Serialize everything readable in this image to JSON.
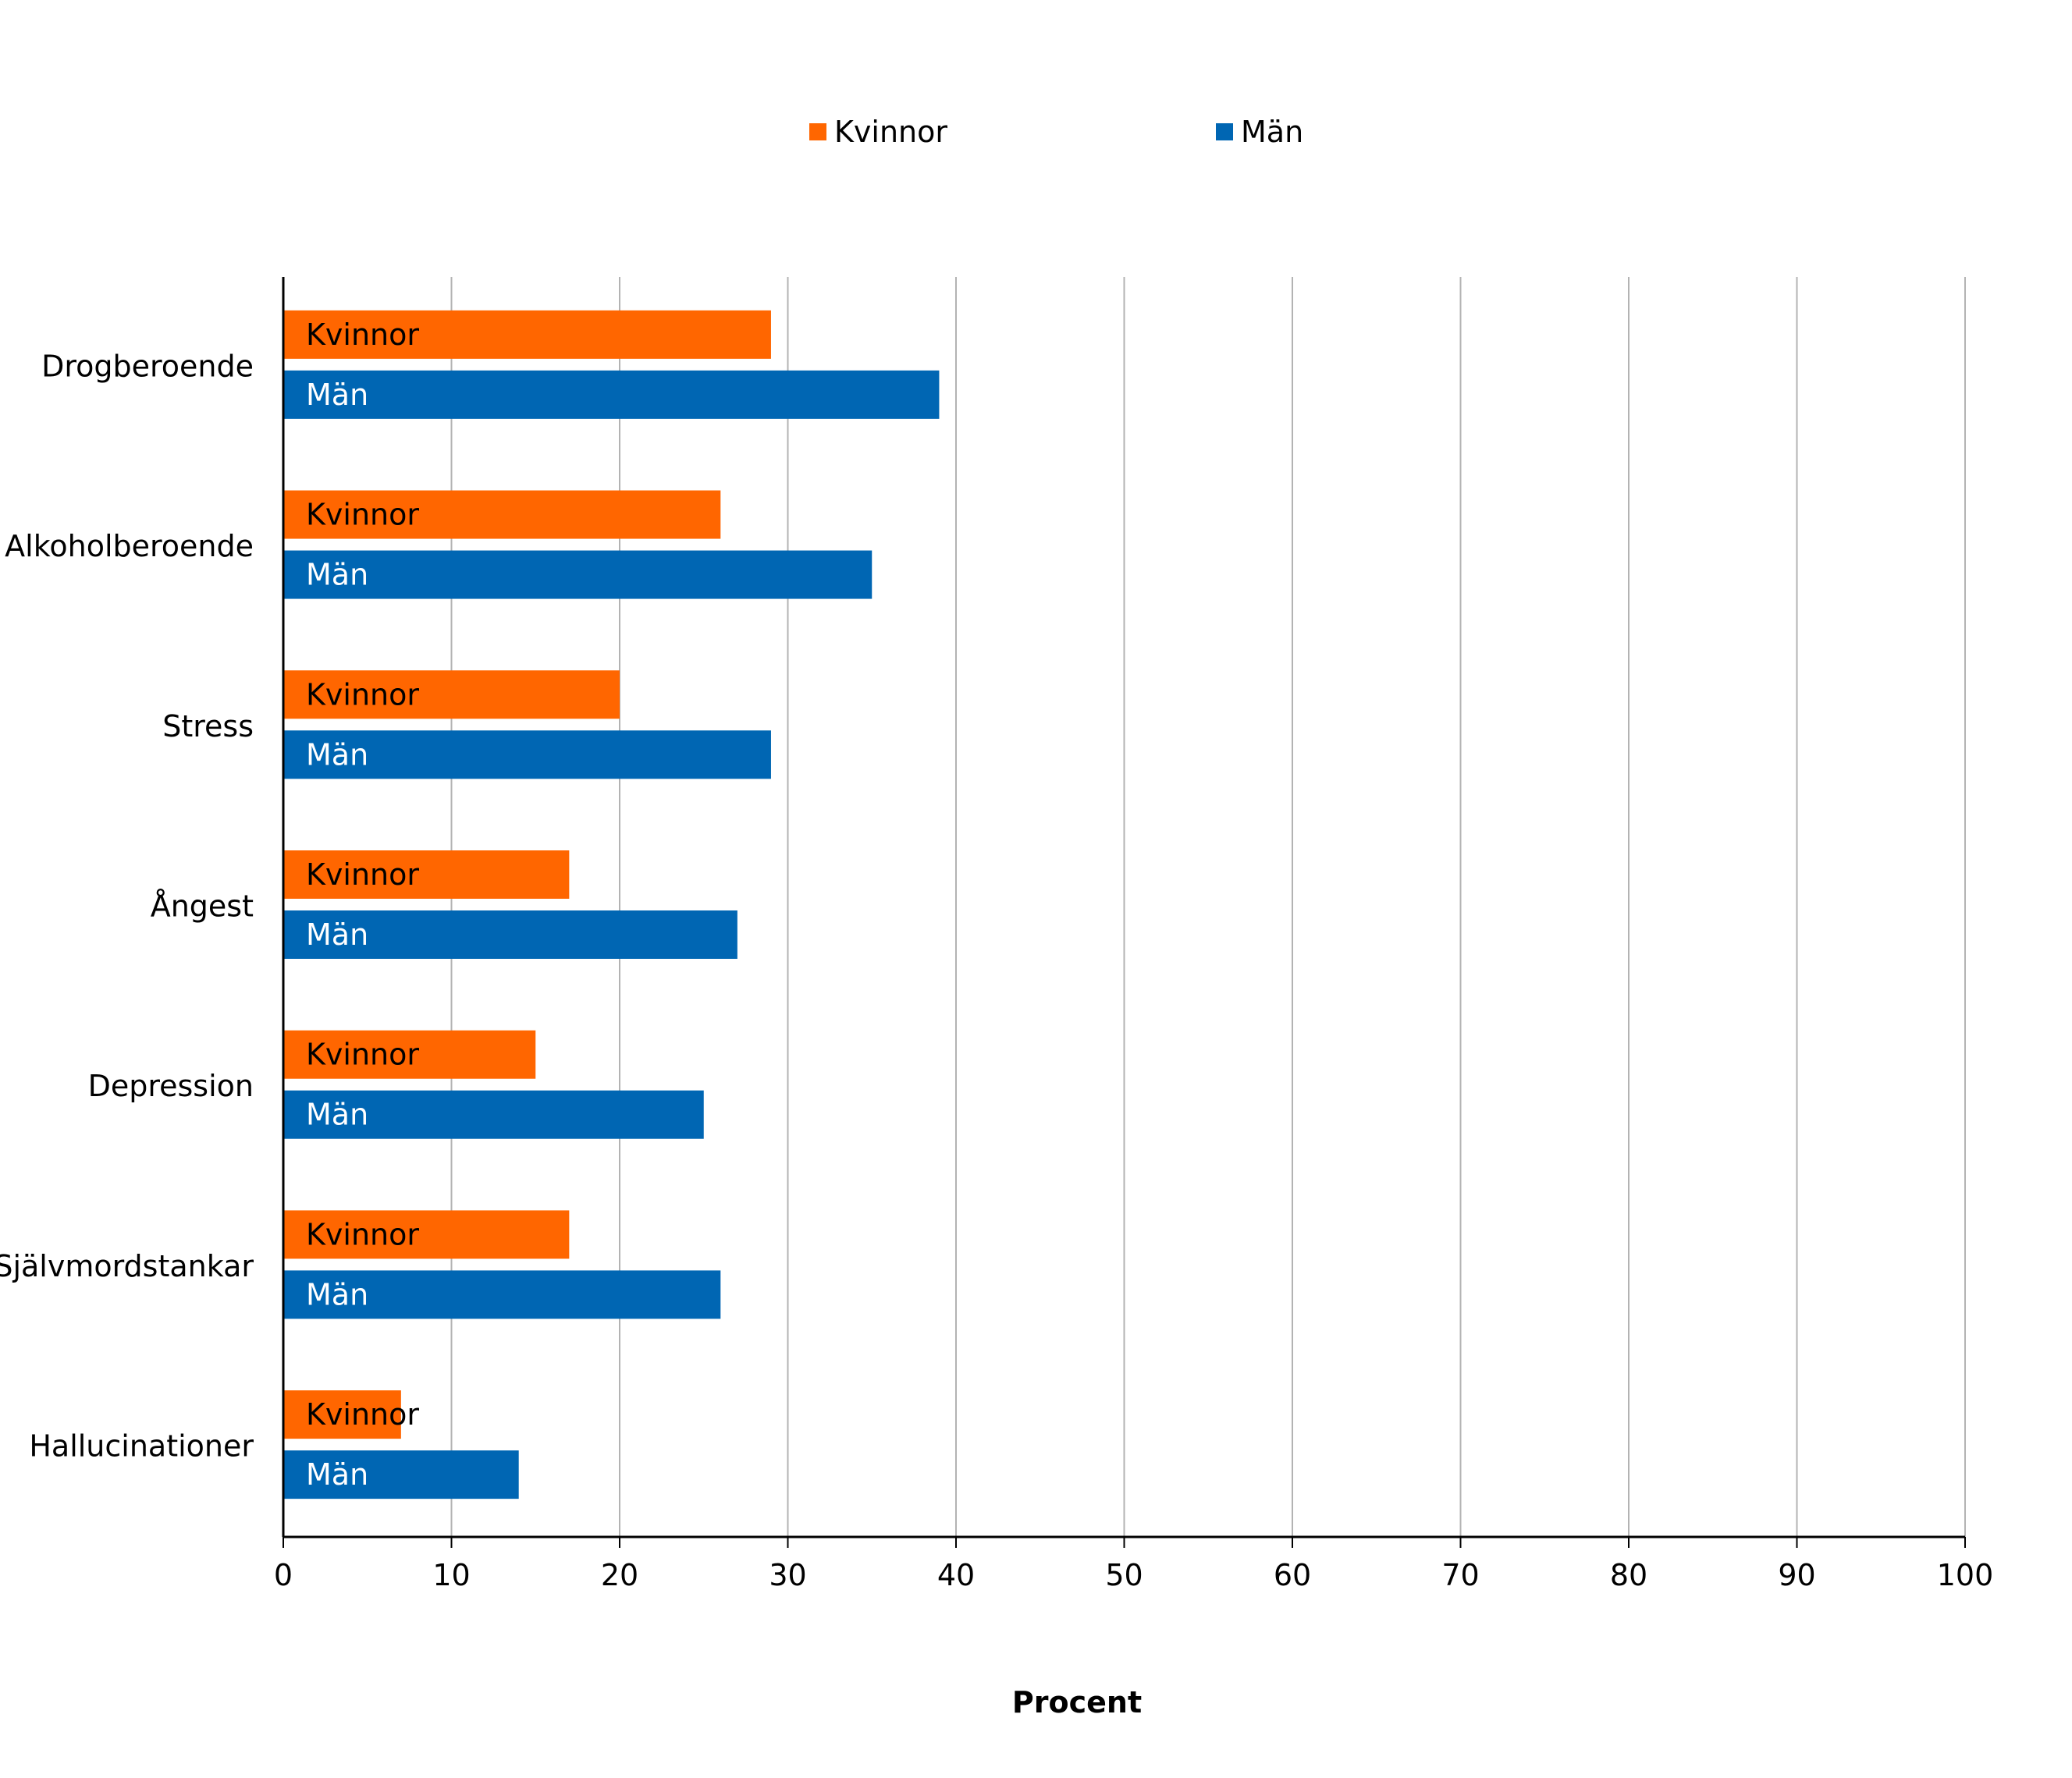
{
  "chart_data": {
    "type": "bar",
    "orientation": "horizontal",
    "categories": [
      "Drogberoende",
      "Alkoholberoende",
      "Stress",
      "Ångest",
      "Depression",
      "Självmordstankar",
      "Hallucinationer"
    ],
    "series": [
      {
        "name": "Kvinnor",
        "color": "#FF6600",
        "bar_label": "Kvinnor",
        "values": [
          29,
          26,
          20,
          17,
          15,
          17,
          7
        ]
      },
      {
        "name": "Män",
        "color": "#0066B3",
        "bar_label": "Män",
        "values": [
          39,
          35,
          29,
          27,
          25,
          26,
          14
        ]
      }
    ],
    "xlabel": "Procent",
    "ylabel": "",
    "xlim": [
      0,
      100
    ],
    "xticks": [
      "0",
      "10",
      "20",
      "30",
      "40",
      "50",
      "60",
      "70",
      "80",
      "90",
      "100"
    ],
    "grid": "vertical",
    "legend_position": "top-center"
  }
}
